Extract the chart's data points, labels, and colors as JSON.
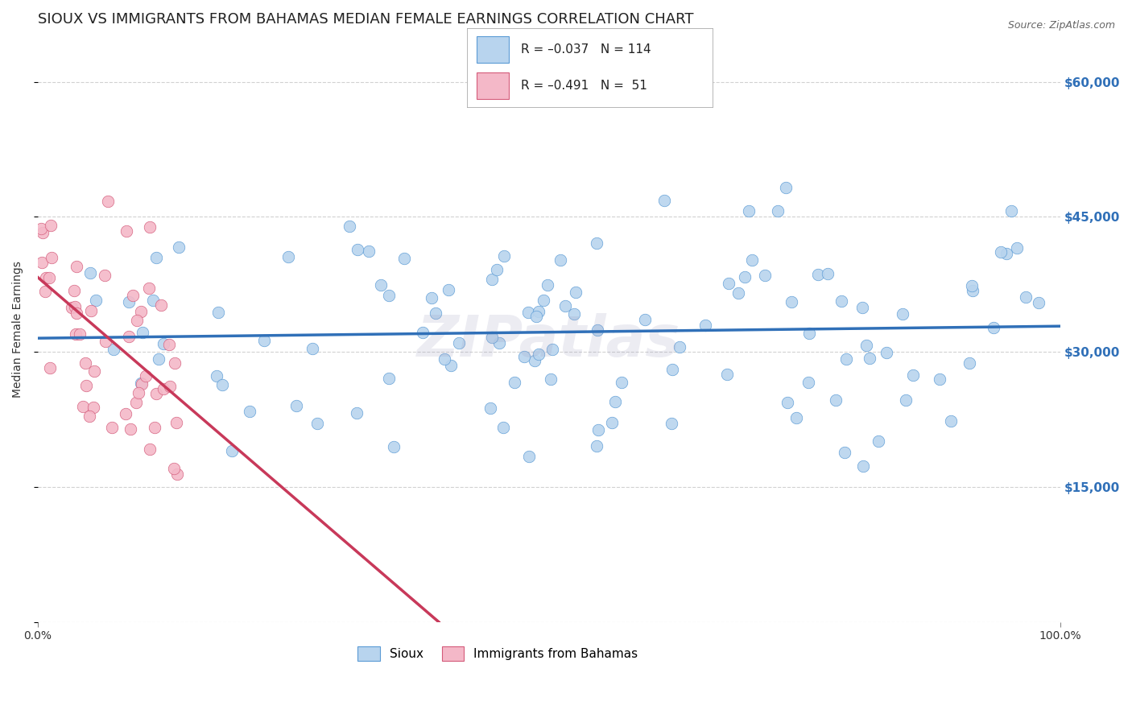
{
  "title": "SIOUX VS IMMIGRANTS FROM BAHAMAS MEDIAN FEMALE EARNINGS CORRELATION CHART",
  "source": "Source: ZipAtlas.com",
  "ylabel": "Median Female Earnings",
  "xlim": [
    0,
    100
  ],
  "ylim": [
    0,
    65000
  ],
  "yticks": [
    0,
    15000,
    30000,
    45000,
    60000
  ],
  "right_ytick_labels": [
    "$15,000",
    "$30,000",
    "$45,000",
    "$60,000"
  ],
  "right_yticks": [
    15000,
    30000,
    45000,
    60000
  ],
  "xtick_labels": [
    "0.0%",
    "100.0%"
  ],
  "sioux_color": "#b8d4ee",
  "sioux_edge_color": "#5b9bd5",
  "bahamas_color": "#f4b8c8",
  "bahamas_edge_color": "#d45b7a",
  "sioux_line_color": "#3070b8",
  "bahamas_line_color": "#c8395a",
  "background_color": "#ffffff",
  "grid_color": "#cccccc",
  "watermark": "ZIPatlas",
  "title_fontsize": 13,
  "axis_label_fontsize": 10,
  "tick_fontsize": 10,
  "legend_fontsize": 11,
  "source_fontsize": 9,
  "sioux_R": -0.037,
  "sioux_N": 114,
  "bahamas_R": -0.491,
  "bahamas_N": 51
}
